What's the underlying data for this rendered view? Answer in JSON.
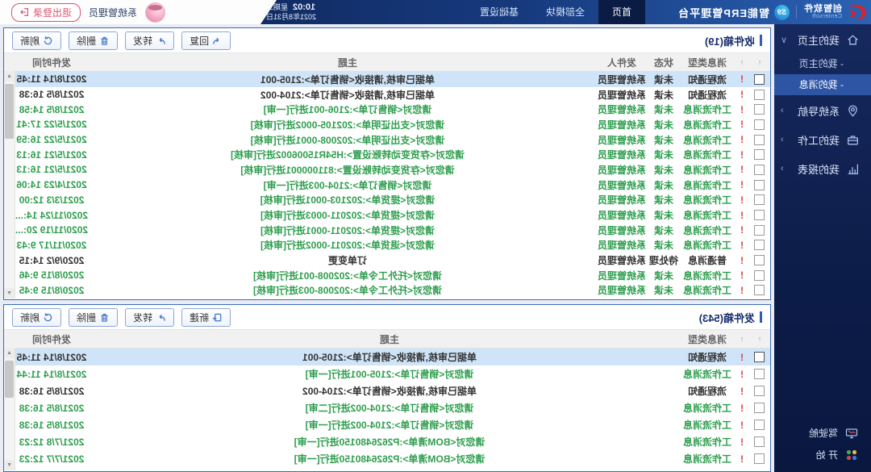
{
  "navbar": {
    "brand_cn": "创智软件",
    "brand_en": "Centersoft",
    "product_badge": "S9",
    "product_name": "智能ERP管理平台",
    "tabs": [
      {
        "label": "首页",
        "active": true
      },
      {
        "label": "全部模块"
      },
      {
        "label": "基础设置"
      }
    ],
    "time": "10:02",
    "weekday": "星期二",
    "date": "2021年8月31日",
    "user_name": "系统管理员",
    "logout_label": "退出登录"
  },
  "sidebar": {
    "sub_prefix": "-",
    "items": [
      {
        "label": "我的主页",
        "icon": "home-icon",
        "name": "sidebar-item-my-home",
        "expanded": true,
        "children": [
          {
            "label": "我的主页"
          },
          {
            "label": "我的消息",
            "selected": true
          }
        ]
      },
      {
        "label": "系统导航",
        "icon": "navigation-pin-icon",
        "name": "sidebar-item-system-nav"
      },
      {
        "label": "我的工作",
        "icon": "briefcase-icon",
        "name": "sidebar-item-my-work"
      },
      {
        "label": "我的报表",
        "icon": "report-chart-icon",
        "name": "sidebar-item-my-reports"
      }
    ],
    "footer_items": [
      {
        "label": "驾驶舱",
        "icon": "dashboard-monitor-icon",
        "name": "sidebar-item-cockpit"
      },
      {
        "label": "开 始",
        "icon": "start-grid-icon",
        "name": "sidebar-item-start"
      }
    ]
  },
  "inbox": {
    "title": "收件箱(19)",
    "buttons": [
      {
        "label": "回复",
        "icon": "reply-icon",
        "name": "reply-button"
      },
      {
        "label": "转发",
        "icon": "forward-icon",
        "name": "forward-button"
      },
      {
        "label": "删除",
        "icon": "delete-icon",
        "name": "delete-button"
      },
      {
        "label": "刷新",
        "icon": "refresh-icon",
        "name": "refresh-button"
      }
    ],
    "columns": {
      "type": "消息类型",
      "status": "状态",
      "sender": "发件人",
      "subject": "主题",
      "time": "发件时间",
      "sort_glyph": "↑"
    },
    "rows": [
      {
        "time": "2021/8/14 11:45",
        "subject": "单据已审核,请接收<销售订单>:2105-001",
        "sender": "系统管理员",
        "status": "未读",
        "type": "流程通知",
        "tone": "dark",
        "selected": true
      },
      {
        "time": "2021/8/5 16:38",
        "subject": "单据已审核,请接收<销售订单>:2104-002",
        "sender": "系统管理员",
        "status": "未读",
        "type": "流程通知",
        "tone": "dark"
      },
      {
        "time": "2021/8/5 14:58",
        "subject": "请您对<销售订单>:2106-001进行[一审]",
        "sender": "系统管理员",
        "status": "未读",
        "type": "工作流消息"
      },
      {
        "time": "2021/5/22 17:41",
        "subject": "请您对<支出证明单>:202105-0002进行[审核]",
        "sender": "系统管理员",
        "status": "未读",
        "type": "工作流消息"
      },
      {
        "time": "2021/5/22 16:59",
        "subject": "请您对<支出证明单>:202008-0001进行[审核]",
        "sender": "系统管理员",
        "status": "未读",
        "type": "工作流消息"
      },
      {
        "time": "2021/5/21 16:13",
        "subject": "请您对<存货变动转账设置>:H54R15006002进行[审核]",
        "sender": "系统管理员",
        "status": "未读",
        "type": "工作流消息"
      },
      {
        "time": "2021/5/21 16:13",
        "subject": "请您对<存货变动转账设置>:811000001进行[审核]",
        "sender": "系统管理员",
        "status": "未读",
        "type": "工作流消息"
      },
      {
        "time": "2021/4/23 14:06",
        "subject": "请您对<销售订单>:2104-003进行[一审]",
        "sender": "系统管理员",
        "status": "未读",
        "type": "工作流消息"
      },
      {
        "time": "2021/3/3 12:00",
        "subject": "请您对<提货单>:202103-0001进行[审核]",
        "sender": "系统管理员",
        "status": "未读",
        "type": "工作流消息"
      },
      {
        "time": "2020/11/24 14:...",
        "subject": "请您对<提货单>:202011-0003进行[审核]",
        "sender": "系统管理员",
        "status": "未读",
        "type": "工作流消息"
      },
      {
        "time": "2020/11/19 20:...",
        "subject": "请您对<提货单>:202011-0001进行[审核]",
        "sender": "系统管理员",
        "status": "未读",
        "type": "工作流消息"
      },
      {
        "time": "2020/11/17 9:43",
        "subject": "请您对<退货单>:202011-0002进行[审核]",
        "sender": "系统管理员",
        "status": "未读",
        "type": "工作流消息"
      },
      {
        "time": "2020/9/2 14:15",
        "subject": "订单变更",
        "sender": "系统管理员",
        "status": "待处理",
        "type": "普通消息",
        "tone": "dark"
      },
      {
        "time": "2020/8/15 9:46",
        "subject": "请您对<托外工令单>:202008-001进行[审核]",
        "sender": "系统管理员",
        "status": "未读",
        "type": "工作流消息"
      },
      {
        "time": "2020/8/15 9:45",
        "subject": "请您对<托外工令单>:202008-003进行[审核]",
        "sender": "系统管理员",
        "status": "未读",
        "type": "工作流消息"
      }
    ]
  },
  "outbox": {
    "title": "发件箱(543)",
    "buttons": [
      {
        "label": "新建",
        "icon": "new-icon",
        "name": "new-button"
      },
      {
        "label": "转发",
        "icon": "forward-icon",
        "name": "forward-button"
      },
      {
        "label": "删除",
        "icon": "delete-icon",
        "name": "delete-button"
      },
      {
        "label": "刷新",
        "icon": "refresh-icon",
        "name": "refresh-button"
      }
    ],
    "columns": {
      "type": "消息类型",
      "subject": "主题",
      "time": "发件时间",
      "sort_glyph": "↑"
    },
    "rows": [
      {
        "time": "2021/8/14 11:45",
        "subject": "单据已审核,请接收<销售订单>:2105-001",
        "type": "流程通知",
        "tone": "dark",
        "selected": true
      },
      {
        "time": "2021/8/14 11:44",
        "subject": "请您对<销售订单>:2105-001进行[一审]",
        "type": "工作流消息"
      },
      {
        "time": "2021/8/5 16:38",
        "subject": "单据已审核,请接收<销售订单>:2104-002",
        "type": "流程通知",
        "tone": "dark"
      },
      {
        "time": "2021/8/5 16:38",
        "subject": "请您对<销售订单>:2104-002进行[二审]",
        "type": "工作流消息"
      },
      {
        "time": "2021/8/5 16:38",
        "subject": "请您对<销售订单>:2104-002进行[一审]",
        "type": "工作流消息"
      },
      {
        "time": "2021/7/8 12:23",
        "subject": "请您对<BOM清单>:P2626480150进行[一审]",
        "type": "工作流消息"
      },
      {
        "time": "2021/7/7 12:23",
        "subject": "请您对<BOM清单>:P2626480150进行[一审]",
        "type": "工作流消息"
      }
    ]
  },
  "colors": {
    "navbar_navy": "#0a1d4a",
    "accent_blue": "#2f5fae",
    "unread_green": "#2e9e4e",
    "priority_red": "#e13b3b",
    "selected_row": "#cfe4f8",
    "logout_red": "#e0506e"
  }
}
